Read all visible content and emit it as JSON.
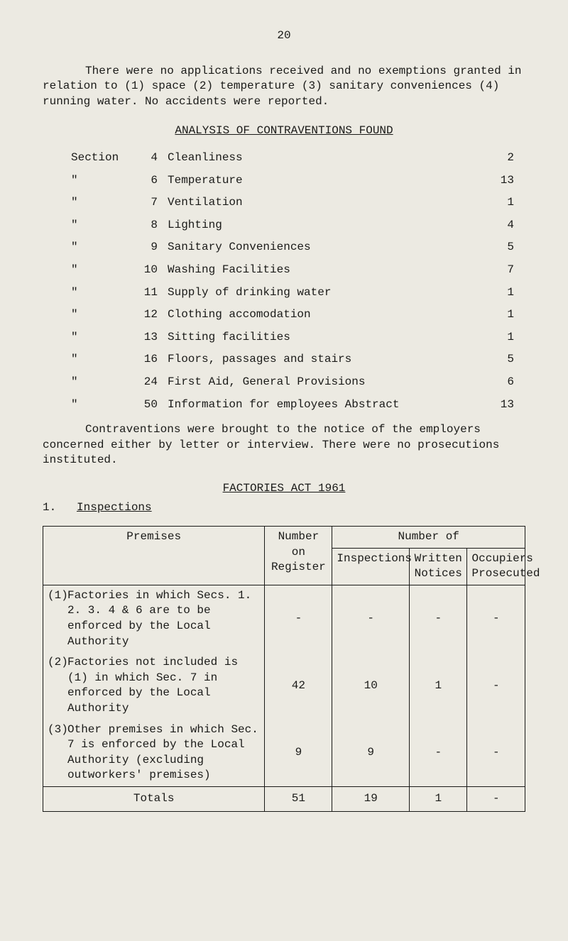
{
  "page_number": "20",
  "intro": "There were no applications received and no exemptions granted in relation to (1) space (2) temperature (3) sanitary conveniences (4) running water.  No accidents were reported.",
  "analysis_heading": "ANALYSIS OF CONTRAVENTIONS FOUND",
  "section_word": "Section",
  "ditto": "\"",
  "contraventions": [
    {
      "section": "4",
      "desc": "Cleanliness",
      "count": "2"
    },
    {
      "section": "6",
      "desc": "Temperature",
      "count": "13"
    },
    {
      "section": "7",
      "desc": "Ventilation",
      "count": "1"
    },
    {
      "section": "8",
      "desc": "Lighting",
      "count": "4"
    },
    {
      "section": "9",
      "desc": "Sanitary Conveniences",
      "count": "5"
    },
    {
      "section": "10",
      "desc": "Washing Facilities",
      "count": "7"
    },
    {
      "section": "11",
      "desc": "Supply of drinking water",
      "count": "1"
    },
    {
      "section": "12",
      "desc": "Clothing accomodation",
      "count": "1"
    },
    {
      "section": "13",
      "desc": "Sitting facilities",
      "count": "1"
    },
    {
      "section": "16",
      "desc": "Floors, passages and stairs",
      "count": "5"
    },
    {
      "section": "24",
      "desc": "First Aid, General Provisions",
      "count": "6"
    },
    {
      "section": "50",
      "desc": "Information for employees Abstract",
      "count": "13"
    }
  ],
  "closing_para": "Contraventions were brought to the notice of the employers concerned either by letter or interview.  There were no prosecutions instituted.",
  "factories_heading": "FACTORIES ACT 1961",
  "inspections_label_num": "1.",
  "inspections_label": "Inspections",
  "table": {
    "col_premises": "Premises",
    "col_number_on_register": "Number on Register",
    "col_number_of": "Number of",
    "col_inspections": "Inspections",
    "col_written_notices": "Written Notices",
    "col_occupiers_prosecuted": "Occupiers Prosecuted",
    "rows": [
      {
        "num": "(1)",
        "desc": "Factories in which Secs. 1. 2. 3. 4 & 6 are to be enforced by the Local Authority",
        "register": "-",
        "inspections": "-",
        "notices": "-",
        "prosecuted": "-"
      },
      {
        "num": "(2)",
        "desc": "Factories not included is (1) in which Sec. 7 in enforced by the Local Authority",
        "register": "42",
        "inspections": "10",
        "notices": "1",
        "prosecuted": "-"
      },
      {
        "num": "(3)",
        "desc": "Other premises in which Sec. 7 is enforced by the Local Authority (excluding outworkers' premises)",
        "register": "9",
        "inspections": "9",
        "notices": "-",
        "prosecuted": "-"
      }
    ],
    "totals_label": "Totals",
    "totals": {
      "register": "51",
      "inspections": "19",
      "notices": "1",
      "prosecuted": "-"
    }
  }
}
